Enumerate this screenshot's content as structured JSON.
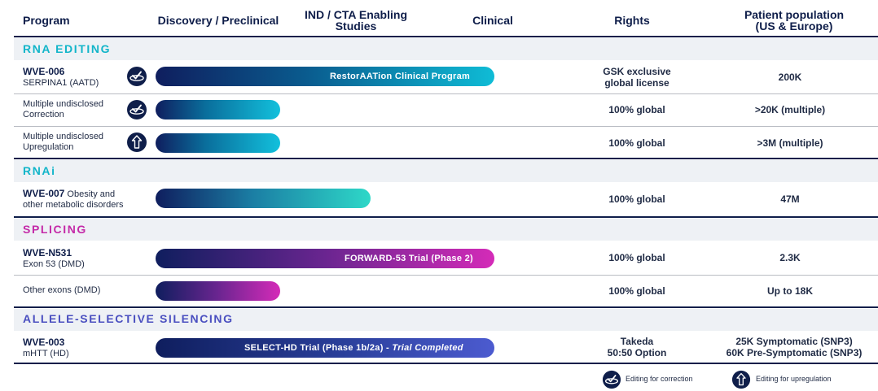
{
  "headers": {
    "program": "Program",
    "discovery": "Discovery / Preclinical",
    "ind_line1": "IND / CTA Enabling",
    "ind_line2": "Studies",
    "clinical": "Clinical",
    "rights": "Rights",
    "patient_line1": "Patient population",
    "patient_line2": "(US & Europe)"
  },
  "sections": {
    "rna_editing": "RNA EDITING",
    "rnai": "RNAi",
    "splicing": "SPLICING",
    "allele": "ALLELE-SELECTIVE SILENCING"
  },
  "rows": {
    "wve006": {
      "name": "WVE-006",
      "sub": "SERPINA1 (AATD)",
      "bar_label": "RestorAATion Clinical Program",
      "rights_line1": "GSK exclusive",
      "rights_line2": "global license",
      "population": "200K"
    },
    "correction": {
      "line1": "Multiple undisclosed",
      "line2": "Correction",
      "rights": "100% global",
      "population": ">20K (multiple)"
    },
    "upregulation": {
      "line1": "Multiple undisclosed",
      "line2": "Upregulation",
      "rights": "100% global",
      "population": ">3M (multiple)"
    },
    "wve007": {
      "name": "WVE-007",
      "line1_rest": " Obesity and",
      "line2": "other metabolic disorders",
      "rights": "100% global",
      "population": "47M"
    },
    "wven531": {
      "name": "WVE-N531",
      "sub": "Exon 53 (DMD)",
      "bar_label": "FORWARD-53 Trial (Phase 2)",
      "rights": "100% global",
      "population": "2.3K"
    },
    "other_exons": {
      "name": "Other exons (DMD)",
      "rights": "100% global",
      "population": "Up to 18K"
    },
    "wve003": {
      "name": "WVE-003",
      "sub": "mHTT (HD)",
      "bar_label_main": "SELECT-HD Trial (Phase 1b/2a) - ",
      "bar_label_italic": "Trial Completed",
      "rights_line1": "Takeda",
      "rights_line2": "50:50 Option",
      "population_line1": "25K Symptomatic (SNP3)",
      "population_line2": "60K Pre-Symptomatic (SNP3)"
    }
  },
  "legend": {
    "correction": "Editing for correction",
    "upregulation": "Editing for upregulation"
  },
  "colors": {
    "navy": "#0f1e4a",
    "teal": "#12b5c9",
    "magenta": "#c42aa8",
    "indigo": "#4a4fc0"
  },
  "icons": {
    "correction": "correction-icon",
    "upregulation": "upregulation-icon"
  }
}
